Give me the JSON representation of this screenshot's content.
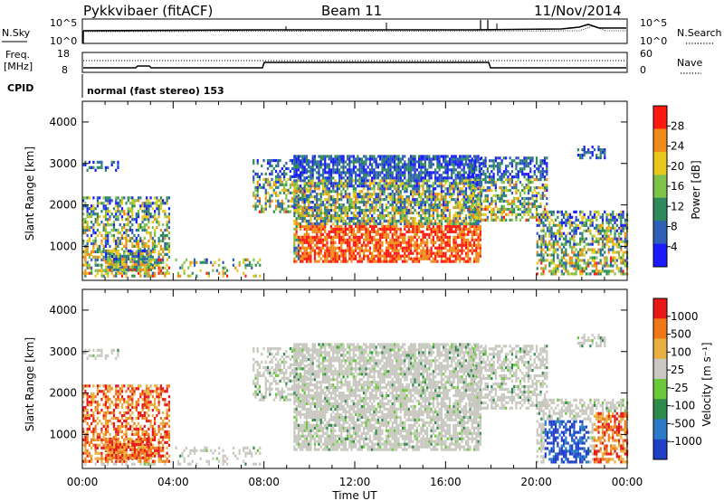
{
  "header": {
    "radar": "Pykkvibaer (fitACF)",
    "beam": "Beam 11",
    "date": "11/Nov/2014"
  },
  "sky_panel": {
    "left_label": "N.Sky",
    "right_label": "N.Search",
    "ticks_left": [
      "10^5",
      "10^0"
    ],
    "ticks_right": [
      "10^5",
      "10^0"
    ]
  },
  "freq_panel": {
    "left_label_1": "Freq.",
    "left_label_2": "[MHz]",
    "right_label": "Nave",
    "ticks_left": [
      "18",
      "8"
    ],
    "ticks_right": [
      "60",
      "0"
    ]
  },
  "cpid": {
    "label": "CPID",
    "text": "normal (fast stereo) 153"
  },
  "chart_data": [
    {
      "type": "heatmap",
      "title": "",
      "quantity": "Power",
      "xlabel": "",
      "ylabel": "Slant Range [km]",
      "xlim": [
        "00:00",
        "24:00"
      ],
      "ylim": [
        180,
        4500
      ],
      "y_ticks": [
        "1000",
        "2000",
        "3000",
        "4000"
      ],
      "colorbar_label": "Power [dB]",
      "colorbar_ticks": [
        "4",
        "8",
        "12",
        "16",
        "20",
        "24",
        "28"
      ],
      "colorbar_colors": [
        "#1a1aff",
        "#2f5fb5",
        "#2e8a5c",
        "#7fc24a",
        "#e8c81a",
        "#f08a18",
        "#ff1a10"
      ]
    },
    {
      "type": "heatmap",
      "title": "",
      "quantity": "Velocity",
      "xlabel": "Time UT",
      "ylabel": "Slant Range [km]",
      "xlim": [
        "00:00",
        "24:00"
      ],
      "ylim": [
        180,
        4500
      ],
      "x_ticks": [
        "00:00",
        "04:00",
        "08:00",
        "12:00",
        "16:00",
        "20:00",
        "00:00"
      ],
      "y_ticks": [
        "1000",
        "2000",
        "3000",
        "4000"
      ],
      "colorbar_label": "Velocity [m s⁻¹]",
      "colorbar_ticks": [
        "1000",
        "500",
        "100",
        "25",
        "-25",
        "-100",
        "-500",
        "-1000"
      ],
      "colorbar_colors": [
        "#2040c8",
        "#2a7ac8",
        "#2e8a4a",
        "#6ac83a",
        "#c8c8c0",
        "#e8b040",
        "#f07818",
        "#e81818"
      ]
    }
  ],
  "colors": {
    "gray": "#c8c8c0",
    "axis": "#000000"
  }
}
